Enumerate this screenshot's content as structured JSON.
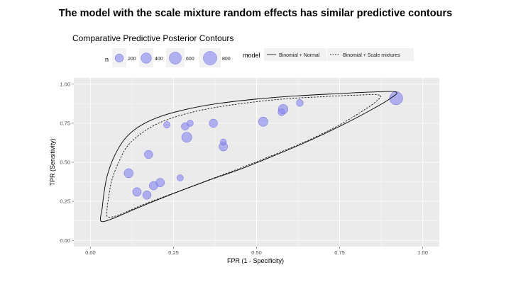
{
  "slide": {
    "title": "The model with the scale mixture random effects has similar predictive contours"
  },
  "chart_data": {
    "type": "scatter",
    "title": "Comparative Predictive Posterior Contours",
    "xlabel": "FPR (1 - Specificity)",
    "ylabel": "TPR (Sensitivity)",
    "xlim": [
      -0.05,
      1.05
    ],
    "ylim": [
      -0.04,
      1.04
    ],
    "x_ticks": [
      "0.00",
      "0.25",
      "0.50",
      "0.75",
      "1.00"
    ],
    "y_ticks": [
      "0.00",
      "0.25",
      "0.50",
      "0.75",
      "1.00"
    ],
    "grid": true,
    "legend_size": {
      "title": "n",
      "breaks": [
        "200",
        "400",
        "600",
        "800"
      ],
      "values": [
        200,
        400,
        600,
        800
      ]
    },
    "legend_model": {
      "title": "model",
      "entries": [
        "Binomial + Normal",
        "Binomial + Scale mixtures"
      ]
    },
    "points": [
      {
        "x": 0.92,
        "y": 0.91,
        "n": 760
      },
      {
        "x": 0.63,
        "y": 0.88,
        "n": 110
      },
      {
        "x": 0.58,
        "y": 0.84,
        "n": 320
      },
      {
        "x": 0.575,
        "y": 0.82,
        "n": 110
      },
      {
        "x": 0.52,
        "y": 0.76,
        "n": 300
      },
      {
        "x": 0.37,
        "y": 0.75,
        "n": 210
      },
      {
        "x": 0.4,
        "y": 0.63,
        "n": 70
      },
      {
        "x": 0.4,
        "y": 0.6,
        "n": 230
      },
      {
        "x": 0.23,
        "y": 0.74,
        "n": 90
      },
      {
        "x": 0.3,
        "y": 0.75,
        "n": 80
      },
      {
        "x": 0.285,
        "y": 0.73,
        "n": 150
      },
      {
        "x": 0.29,
        "y": 0.66,
        "n": 380
      },
      {
        "x": 0.175,
        "y": 0.55,
        "n": 210
      },
      {
        "x": 0.115,
        "y": 0.43,
        "n": 280
      },
      {
        "x": 0.27,
        "y": 0.4,
        "n": 80
      },
      {
        "x": 0.21,
        "y": 0.37,
        "n": 230
      },
      {
        "x": 0.19,
        "y": 0.35,
        "n": 220
      },
      {
        "x": 0.14,
        "y": 0.31,
        "n": 230
      },
      {
        "x": 0.17,
        "y": 0.29,
        "n": 220
      }
    ],
    "contours": [
      {
        "model": "Binomial + Normal",
        "linetype": "solid",
        "points": [
          [
            0.92,
            0.95
          ],
          [
            0.85,
            0.95
          ],
          [
            0.75,
            0.94
          ],
          [
            0.62,
            0.925
          ],
          [
            0.5,
            0.905
          ],
          [
            0.38,
            0.875
          ],
          [
            0.28,
            0.835
          ],
          [
            0.2,
            0.785
          ],
          [
            0.14,
            0.72
          ],
          [
            0.1,
            0.64
          ],
          [
            0.07,
            0.53
          ],
          [
            0.05,
            0.41
          ],
          [
            0.04,
            0.29
          ],
          [
            0.035,
            0.2
          ],
          [
            0.03,
            0.14
          ],
          [
            0.035,
            0.12
          ],
          [
            0.055,
            0.13
          ],
          [
            0.09,
            0.16
          ],
          [
            0.15,
            0.215
          ],
          [
            0.25,
            0.3
          ],
          [
            0.35,
            0.38
          ],
          [
            0.45,
            0.455
          ],
          [
            0.55,
            0.54
          ],
          [
            0.65,
            0.63
          ],
          [
            0.75,
            0.73
          ],
          [
            0.84,
            0.83
          ],
          [
            0.9,
            0.905
          ],
          [
            0.92,
            0.95
          ]
        ]
      },
      {
        "model": "Binomial + Scale mixtures",
        "linetype": "dashed",
        "points": [
          [
            0.87,
            0.93
          ],
          [
            0.8,
            0.93
          ],
          [
            0.7,
            0.92
          ],
          [
            0.58,
            0.905
          ],
          [
            0.47,
            0.88
          ],
          [
            0.36,
            0.845
          ],
          [
            0.27,
            0.8
          ],
          [
            0.2,
            0.745
          ],
          [
            0.15,
            0.68
          ],
          [
            0.11,
            0.6
          ],
          [
            0.085,
            0.5
          ],
          [
            0.065,
            0.39
          ],
          [
            0.055,
            0.28
          ],
          [
            0.05,
            0.2
          ],
          [
            0.05,
            0.155
          ],
          [
            0.065,
            0.15
          ],
          [
            0.1,
            0.175
          ],
          [
            0.16,
            0.23
          ],
          [
            0.26,
            0.31
          ],
          [
            0.36,
            0.39
          ],
          [
            0.46,
            0.47
          ],
          [
            0.56,
            0.555
          ],
          [
            0.66,
            0.645
          ],
          [
            0.75,
            0.74
          ],
          [
            0.82,
            0.83
          ],
          [
            0.86,
            0.89
          ],
          [
            0.87,
            0.93
          ]
        ]
      }
    ],
    "colors": {
      "point_fill": "#8585f0",
      "point_stroke": "#6a6ae0",
      "panel_bg": "#ebebeb",
      "grid": "#ffffff",
      "contour": "#000000"
    }
  }
}
